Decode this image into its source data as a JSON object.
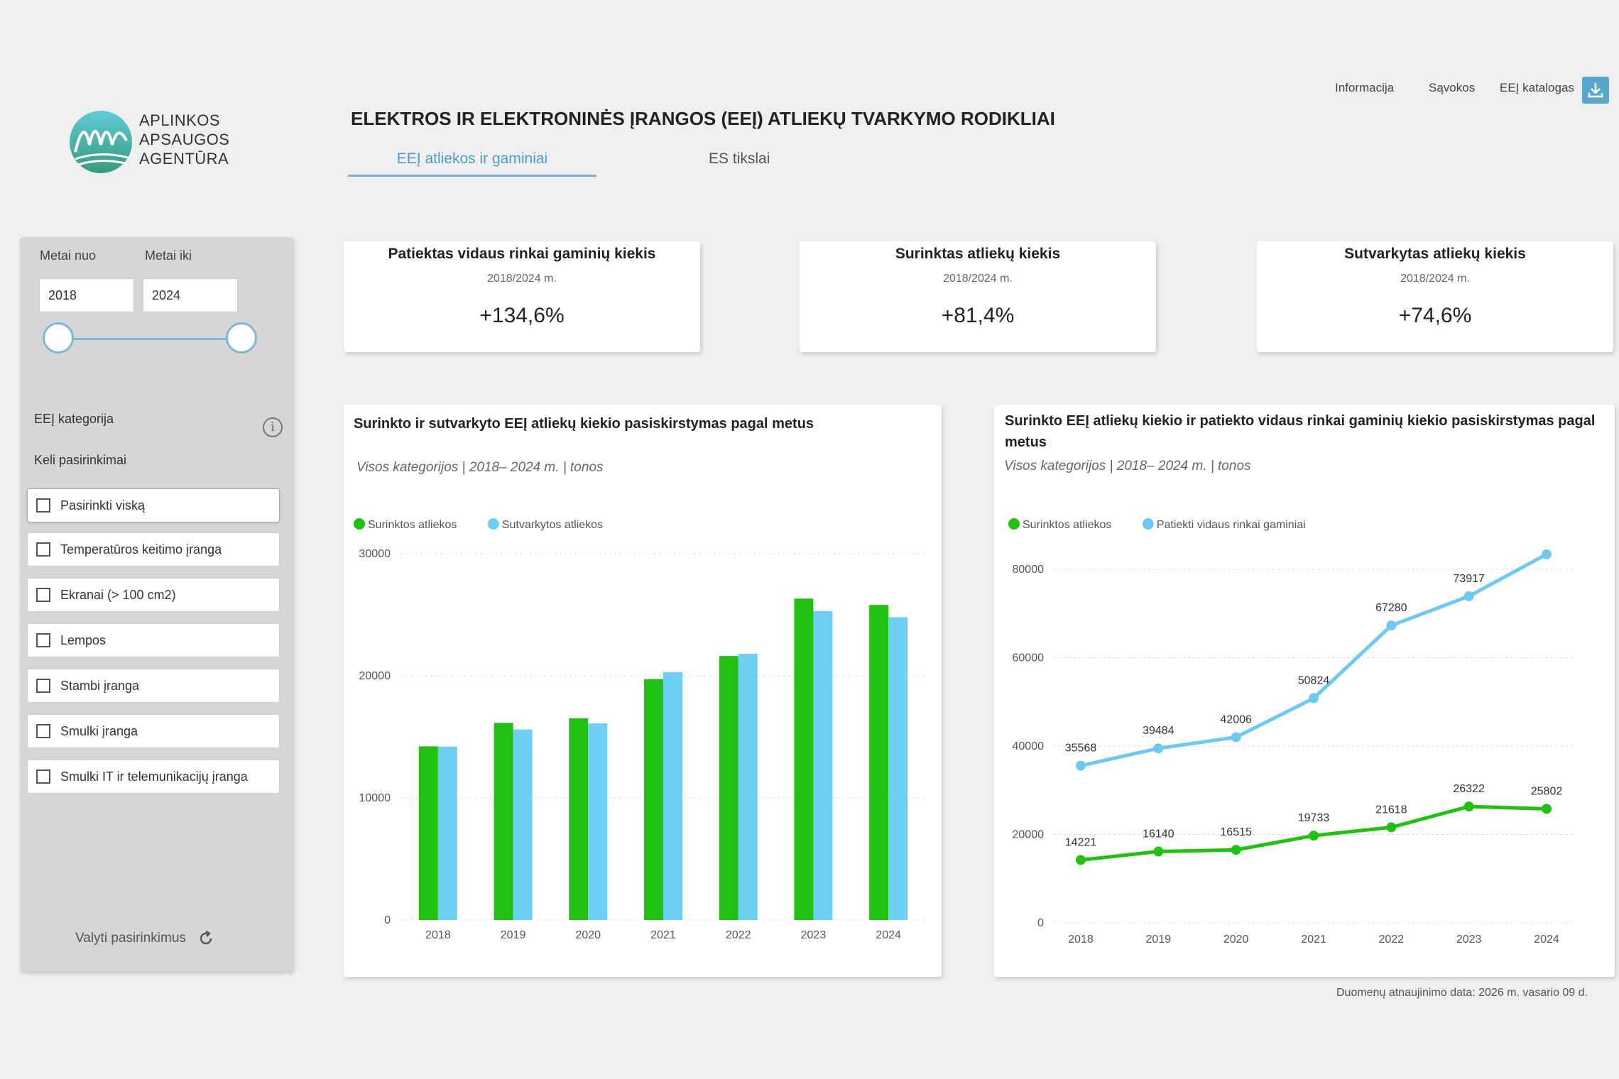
{
  "header": {
    "links": [
      "Informacija",
      "Sąvokos",
      "EEĮ katalogas"
    ],
    "download_icon": "download-icon",
    "title": "ELEKTROS IR ELEKTRONINĖS ĮRANGOS (EEĮ) ATLIEKŲ TVARKYMO RODIKLIAI",
    "tabs": [
      {
        "label": "EEĮ atliekos ir gaminiai",
        "active": true
      },
      {
        "label": "ES tikslai",
        "active": false
      }
    ]
  },
  "logo": {
    "line1": "APLINKOS",
    "line2": "APSAUGOS",
    "line3": "AGENTŪRA"
  },
  "sidebar": {
    "year_from_label": "Metai nuo",
    "year_to_label": "Metai iki",
    "year_from": "2018",
    "year_to": "2024",
    "category_title": "EEĮ kategorija",
    "multi_label": "Keli pasirinkimai",
    "items": [
      "Pasirinkti viską",
      "Temperatūros keitimo įranga",
      "Ekranai (> 100 cm2)",
      "Lempos",
      "Stambi įranga",
      "Smulki įranga",
      "Smulki IT ir telemunikacijų įranga"
    ],
    "reset_label": "Valyti pasirinkimus"
  },
  "kpis": [
    {
      "title": "Patiektas vidaus rinkai gaminių kiekis",
      "period": "2018/2024 m.",
      "value": "+134,6%"
    },
    {
      "title": "Surinktas atliekų kiekis",
      "period": "2018/2024 m.",
      "value": "+81,4%"
    },
    {
      "title": "Sutvarkytas atliekų kiekis",
      "period": "2018/2024 m.",
      "value": "+74,6%"
    }
  ],
  "colors": {
    "green": "#22c012",
    "blue": "#6ecff5",
    "line_blue": "#6ec9ee",
    "accent": "#5aa7cc"
  },
  "chart_data": [
    {
      "type": "bar",
      "title": "Surinkto ir sutvarkyto EEĮ atliekų kiekio pasiskirstymas pagal metus",
      "subtitle": "Visos kategorijos | 2018– 2024 m. | tonos",
      "categories": [
        "2018",
        "2019",
        "2020",
        "2021",
        "2022",
        "2023",
        "2024"
      ],
      "series": [
        {
          "name": "Surinktos atliekos",
          "color": "#22c012",
          "values": [
            14221,
            16140,
            16515,
            19733,
            21618,
            26322,
            25802
          ]
        },
        {
          "name": "Sutvarkytos atliekos",
          "color": "#6ecff5",
          "values": [
            14200,
            15600,
            16100,
            20300,
            21800,
            25300,
            24800
          ]
        }
      ],
      "ylim": [
        0,
        30000
      ],
      "yticks": [
        0,
        10000,
        20000,
        30000
      ],
      "legend": "top-left",
      "grid": true
    },
    {
      "type": "line",
      "title": "Surinkto EEĮ atliekų kiekio ir patiekto vidaus rinkai gaminių kiekio pasiskirstymas pagal metus",
      "subtitle": "Visos kategorijos | 2018– 2024 m. | tonos",
      "categories": [
        "2018",
        "2019",
        "2020",
        "2021",
        "2022",
        "2023",
        "2024"
      ],
      "series": [
        {
          "name": "Surinktos atliekos",
          "color": "#22c012",
          "values": [
            14221,
            16140,
            16515,
            19733,
            21618,
            26322,
            25802
          ],
          "labels": [
            "14221",
            "16140",
            "16515",
            "19733",
            "21618",
            "26322",
            "25802"
          ]
        },
        {
          "name": "Patiekti vidaus rinkai gaminiai",
          "color": "#6ec9ee",
          "values": [
            35568,
            39484,
            42006,
            50824,
            67280,
            73917,
            83400
          ],
          "labels": [
            "35568",
            "39484",
            "42006",
            "50824",
            "67280",
            "73917",
            ""
          ]
        }
      ],
      "ylim": [
        0,
        80000
      ],
      "yticks": [
        0,
        20000,
        40000,
        60000,
        80000
      ],
      "legend": "top-left",
      "grid": true
    }
  ],
  "footer": "Duomenų atnaujinimo data: 2026 m. vasario 09 d."
}
